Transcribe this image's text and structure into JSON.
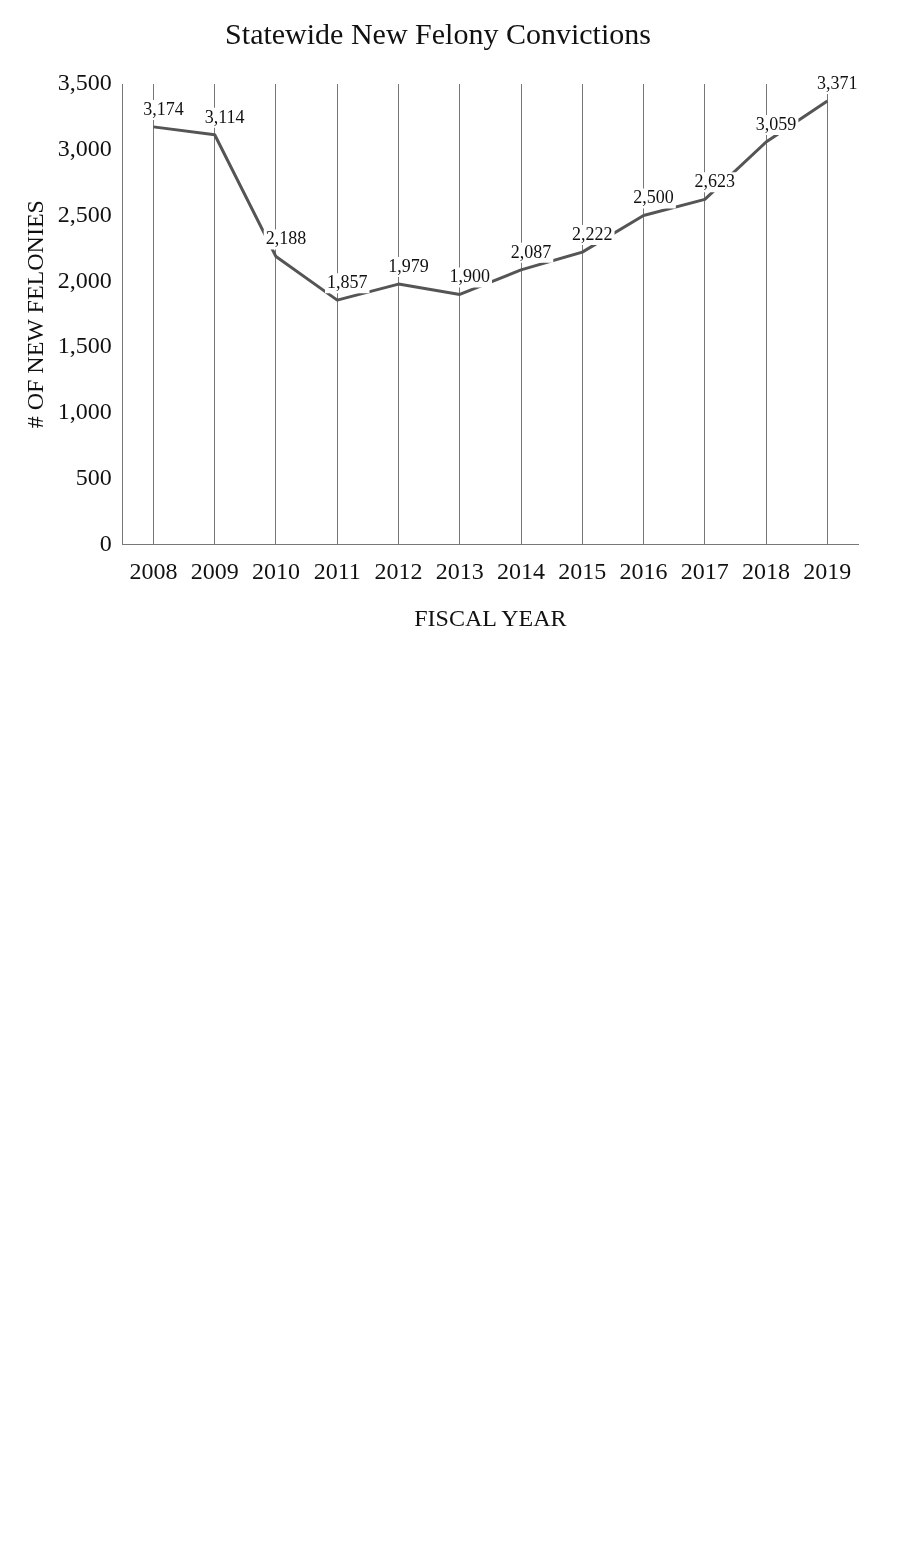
{
  "chart_data": {
    "type": "line",
    "title": "Statewide New Felony Convictions",
    "xlabel": "FISCAL YEAR",
    "ylabel": "# OF NEW FELONIES",
    "categories": [
      "2008",
      "2009",
      "2010",
      "2011",
      "2012",
      "2013",
      "2014",
      "2015",
      "2016",
      "2017",
      "2018",
      "2019"
    ],
    "series": [
      {
        "color": "#555555",
        "values": [
          3174,
          3114,
          2188,
          1857,
          1979,
          1900,
          2087,
          2222,
          2500,
          2623,
          3059,
          3371
        ],
        "value_labels": [
          "3,174",
          "3,114",
          "2,188",
          "1,857",
          "1,979",
          "1,900",
          "2,087",
          "2,222",
          "2,500",
          "2,623",
          "3,059",
          "3,371"
        ]
      }
    ],
    "ylim": [
      0,
      3500
    ],
    "yticks": [
      0,
      500,
      {
        "value": 1000,
        "label": "1,000"
      },
      {
        "value": 1500,
        "label": "1,500"
      },
      {
        "value": 2000,
        "label": "2,000"
      },
      {
        "value": 2500,
        "label": "2,500"
      },
      {
        "value": 3000,
        "label": "3,000"
      },
      {
        "value": 3500,
        "label": "3,500"
      }
    ],
    "grid": "x",
    "legend": false,
    "marker": "none",
    "line_style": "solid"
  }
}
